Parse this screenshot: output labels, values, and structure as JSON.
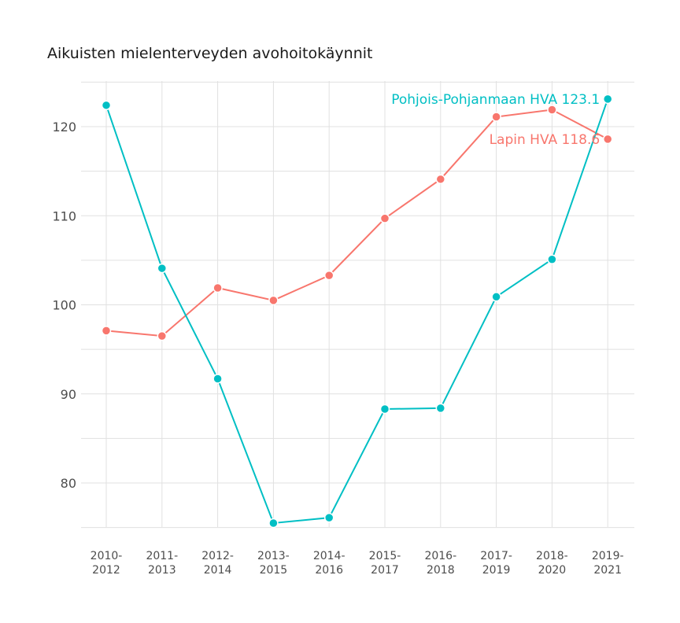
{
  "chart_data": {
    "type": "line",
    "title": "Aikuisten mielenterveyden avohoitokäynnit",
    "xlabel": "",
    "ylabel": "",
    "categories": [
      "2010-2012",
      "2011-2013",
      "2012-2014",
      "2013-2015",
      "2014-2016",
      "2015-2017",
      "2016-2018",
      "2017-2019",
      "2018-2020",
      "2019-2021"
    ],
    "category_lines": [
      [
        "2010-",
        "2012"
      ],
      [
        "2011-",
        "2013"
      ],
      [
        "2012-",
        "2014"
      ],
      [
        "2013-",
        "2015"
      ],
      [
        "2014-",
        "2016"
      ],
      [
        "2015-",
        "2017"
      ],
      [
        "2016-",
        "2018"
      ],
      [
        "2017-",
        "2019"
      ],
      [
        "2018-",
        "2020"
      ],
      [
        "2019-",
        "2021"
      ]
    ],
    "ylim": [
      75,
      125
    ],
    "yticks": [
      80,
      90,
      100,
      110,
      120
    ],
    "grid": true,
    "legend": "none (direct end labels)",
    "series": [
      {
        "name": "Lapin HVA",
        "color": "#F8766D",
        "values": [
          97.1,
          96.5,
          101.9,
          100.5,
          103.3,
          109.7,
          114.1,
          121.1,
          121.9,
          118.6
        ],
        "end_label": "Lapin HVA 118.6"
      },
      {
        "name": "Pohjois-Pohjanmaan HVA",
        "color": "#00BFC4",
        "values": [
          122.4,
          104.1,
          91.7,
          75.5,
          76.1,
          88.3,
          88.4,
          100.9,
          105.1,
          123.1
        ],
        "end_label": "Pohjois-Pohjanmaan HVA 123.1"
      }
    ]
  }
}
